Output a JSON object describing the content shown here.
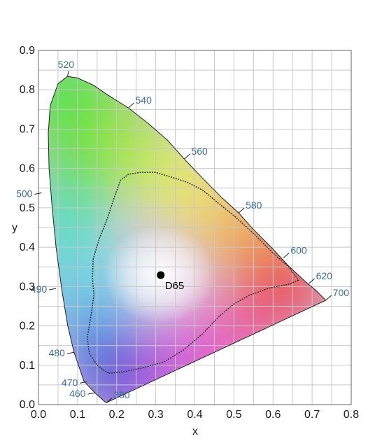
{
  "chart_data": {
    "type": "scatter",
    "title": "",
    "xlabel": "x",
    "ylabel": "y",
    "xlim": [
      0.0,
      0.8
    ],
    "ylim": [
      0.0,
      0.9
    ],
    "x_ticks": [
      "0.0",
      "0.1",
      "0.2",
      "0.3",
      "0.4",
      "0.5",
      "0.6",
      "0.7",
      "0.8"
    ],
    "y_ticks": [
      "0.0",
      "0.1",
      "0.2",
      "0.3",
      "0.4",
      "0.5",
      "0.6",
      "0.7",
      "0.8",
      "0.9"
    ],
    "grid": true,
    "spectral_locus": [
      [
        0.174,
        0.005
      ],
      [
        0.17,
        0.007
      ],
      [
        0.16,
        0.016
      ],
      [
        0.144,
        0.03
      ],
      [
        0.13,
        0.045
      ],
      [
        0.116,
        0.06
      ],
      [
        0.091,
        0.133
      ],
      [
        0.075,
        0.2
      ],
      [
        0.06,
        0.29
      ],
      [
        0.045,
        0.4
      ],
      [
        0.035,
        0.5
      ],
      [
        0.027,
        0.6
      ],
      [
        0.025,
        0.69
      ],
      [
        0.03,
        0.76
      ],
      [
        0.05,
        0.815
      ],
      [
        0.074,
        0.834
      ],
      [
        0.1,
        0.83
      ],
      [
        0.14,
        0.812
      ],
      [
        0.18,
        0.785
      ],
      [
        0.23,
        0.754
      ],
      [
        0.28,
        0.715
      ],
      [
        0.33,
        0.672
      ],
      [
        0.373,
        0.624
      ],
      [
        0.42,
        0.575
      ],
      [
        0.47,
        0.525
      ],
      [
        0.512,
        0.487
      ],
      [
        0.55,
        0.445
      ],
      [
        0.6,
        0.395
      ],
      [
        0.64,
        0.352
      ],
      [
        0.68,
        0.315
      ],
      [
        0.71,
        0.29
      ],
      [
        0.735,
        0.265
      ]
    ],
    "wavelength_labels": [
      {
        "label": "380",
        "x": 0.174,
        "y": 0.005,
        "anchor": "right"
      },
      {
        "label": "460",
        "x": 0.144,
        "y": 0.03,
        "anchor": "left"
      },
      {
        "label": "470",
        "x": 0.124,
        "y": 0.058,
        "anchor": "left"
      },
      {
        "label": "480",
        "x": 0.091,
        "y": 0.133,
        "anchor": "left"
      },
      {
        "label": "490",
        "x": 0.045,
        "y": 0.295,
        "anchor": "left"
      },
      {
        "label": "500",
        "x": 0.008,
        "y": 0.538,
        "anchor": "left"
      },
      {
        "label": "520",
        "x": 0.074,
        "y": 0.834,
        "anchor": "above"
      },
      {
        "label": "540",
        "x": 0.23,
        "y": 0.754,
        "anchor": "right"
      },
      {
        "label": "560",
        "x": 0.373,
        "y": 0.624,
        "anchor": "right"
      },
      {
        "label": "580",
        "x": 0.512,
        "y": 0.487,
        "anchor": "right"
      },
      {
        "label": "600",
        "x": 0.627,
        "y": 0.373,
        "anchor": "right"
      },
      {
        "label": "620",
        "x": 0.692,
        "y": 0.308,
        "anchor": "right"
      },
      {
        "label": "700",
        "x": 0.735,
        "y": 0.265,
        "anchor": "right"
      }
    ],
    "gamut_boundary": [
      [
        0.18,
        0.08
      ],
      [
        0.21,
        0.082
      ],
      [
        0.26,
        0.092
      ],
      [
        0.32,
        0.108
      ],
      [
        0.37,
        0.138
      ],
      [
        0.42,
        0.18
      ],
      [
        0.46,
        0.222
      ],
      [
        0.5,
        0.256
      ],
      [
        0.54,
        0.278
      ],
      [
        0.59,
        0.296
      ],
      [
        0.64,
        0.306
      ],
      [
        0.665,
        0.316
      ],
      [
        0.64,
        0.35
      ],
      [
        0.6,
        0.385
      ],
      [
        0.55,
        0.435
      ],
      [
        0.5,
        0.48
      ],
      [
        0.46,
        0.512
      ],
      [
        0.42,
        0.545
      ],
      [
        0.38,
        0.565
      ],
      [
        0.34,
        0.578
      ],
      [
        0.3,
        0.59
      ],
      [
        0.26,
        0.59
      ],
      [
        0.23,
        0.585
      ],
      [
        0.21,
        0.57
      ],
      [
        0.195,
        0.53
      ],
      [
        0.175,
        0.47
      ],
      [
        0.155,
        0.42
      ],
      [
        0.14,
        0.37
      ],
      [
        0.138,
        0.32
      ],
      [
        0.142,
        0.28
      ],
      [
        0.135,
        0.23
      ],
      [
        0.125,
        0.17
      ],
      [
        0.13,
        0.13
      ],
      [
        0.15,
        0.1
      ],
      [
        0.17,
        0.085
      ]
    ],
    "white_point": {
      "label": "D65",
      "x": 0.3127,
      "y": 0.329
    }
  }
}
